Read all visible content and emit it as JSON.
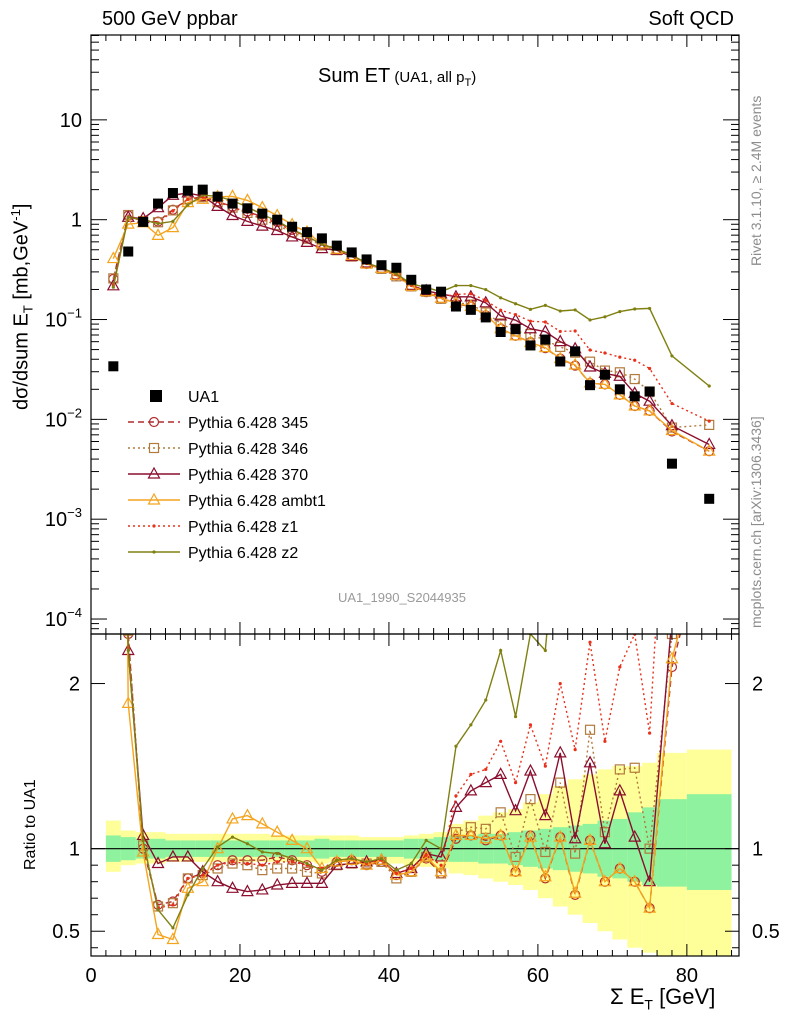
{
  "header": {
    "left": "500 GeV ppbar",
    "right": "Soft QCD"
  },
  "side": {
    "rivet": "Rivet 3.1.10, ≥ 2.4M events",
    "mcplots": "mcplots.cern.ch [arXiv:1306.3436]"
  },
  "chart_data": {
    "type": "line",
    "title": "Sum ET",
    "title_sub": "(UA1, all p",
    "title_sub_idx": "T",
    "title_sub_end": ")",
    "analysis_tag": "UA1_1990_S2044935",
    "ylabel": "dσ/dsum E_T [mb,GeV^-1]",
    "ylabel_main": "dσ/dsum E",
    "ylabel_sub": "T",
    "ylabel_rest": " [mb,GeV",
    "ylabel_sup": "-1",
    "ylabel_end": "]",
    "ratio_ylabel": "Ratio to UA1",
    "xlabel_main": "Σ E",
    "xlabel_sub": "T",
    "xlabel_rest": " [GeV]",
    "xlim": [
      0,
      87
    ],
    "ylim_log": [
      -4.15,
      1.85
    ],
    "ratio_ylim": [
      0.35,
      2.3
    ],
    "x_ticks": [
      0,
      20,
      40,
      60,
      80
    ],
    "y_ticks": [
      {
        "base": "10",
        "exp": "",
        "v": 1
      },
      {
        "base": "1",
        "exp": "",
        "v": 0
      },
      {
        "base": "10",
        "exp": "−1",
        "v": -1
      },
      {
        "base": "10",
        "exp": "−2",
        "v": -2
      },
      {
        "base": "10",
        "exp": "−3",
        "v": -3
      },
      {
        "base": "10",
        "exp": "−4",
        "v": -4
      }
    ],
    "ratio_ticks": [
      {
        "label": "0.5",
        "v": 0.5
      },
      {
        "label": "1",
        "v": 1
      },
      {
        "label": "2",
        "v": 2
      }
    ],
    "legend_placement": "middle-left",
    "data_x": [
      3,
      5,
      7,
      9,
      11,
      13,
      15,
      17,
      19,
      21,
      23,
      25,
      27,
      29,
      31,
      33,
      35,
      37,
      39,
      41,
      43,
      45,
      47,
      49,
      51,
      53,
      55,
      57,
      59,
      61,
      63,
      65,
      67,
      69,
      71,
      73,
      75,
      78,
      83
    ],
    "data_series": {
      "name": "UA1",
      "color": "#000000",
      "y": [
        0.034,
        0.48,
        0.95,
        1.45,
        1.85,
        1.95,
        2.0,
        1.7,
        1.45,
        1.3,
        1.15,
        1.0,
        0.85,
        0.75,
        0.65,
        0.55,
        0.47,
        0.4,
        0.35,
        0.33,
        0.25,
        0.2,
        0.19,
        0.135,
        0.125,
        0.105,
        0.075,
        0.08,
        0.055,
        0.063,
        0.038,
        0.048,
        0.022,
        0.028,
        0.02,
        0.017,
        0.019,
        0.0036,
        0.0016
      ]
    },
    "mc_x": [
      3,
      5,
      7,
      9,
      11,
      13,
      15,
      17,
      19,
      21,
      23,
      25,
      27,
      29,
      31,
      33,
      35,
      37,
      39,
      41,
      43,
      45,
      47,
      49,
      51,
      53,
      55,
      57,
      59,
      61,
      63,
      65,
      67,
      69,
      71,
      73,
      75,
      78,
      83
    ],
    "series": [
      {
        "name": "Pythia 6.428 345",
        "color": "#b22c2c",
        "dash": "6,4",
        "marker": "circle",
        "ratio": [
          7.5,
          2.3,
          1.0,
          0.66,
          0.68,
          0.82,
          0.85,
          0.9,
          0.93,
          0.93,
          0.93,
          0.95,
          0.93,
          0.9,
          0.86,
          0.92,
          0.93,
          0.9,
          0.92,
          0.84,
          0.86,
          0.94,
          0.85,
          1.06,
          1.08,
          1.05,
          1.08,
          0.86,
          1.08,
          0.82,
          1.07,
          0.72,
          1.05,
          0.8,
          0.88,
          0.8,
          0.64,
          2.1,
          3.0
        ]
      },
      {
        "name": "Pythia 6.428 346",
        "color": "#b27a3c",
        "dash": "2,3",
        "marker": "square",
        "ratio": [
          7.6,
          2.32,
          1.02,
          0.65,
          0.67,
          0.82,
          0.84,
          0.88,
          0.91,
          0.9,
          0.87,
          0.88,
          0.88,
          0.86,
          0.85,
          0.9,
          0.91,
          0.91,
          0.92,
          0.82,
          0.86,
          0.95,
          0.85,
          1.1,
          1.13,
          1.12,
          1.22,
          0.95,
          1.3,
          0.98,
          1.4,
          0.97,
          1.72,
          1.1,
          1.48,
          1.49,
          1.0,
          2.3,
          5.5
        ]
      },
      {
        "name": "Pythia 6.428 370",
        "color": "#8b0e2e",
        "dash": "",
        "marker": "triangle",
        "ratio": [
          6.4,
          2.2,
          1.08,
          0.91,
          0.95,
          0.95,
          0.86,
          0.8,
          0.76,
          0.74,
          0.75,
          0.78,
          0.79,
          0.79,
          0.79,
          0.9,
          0.91,
          0.92,
          0.93,
          0.85,
          0.88,
          0.97,
          0.95,
          1.25,
          1.35,
          1.4,
          1.45,
          1.23,
          1.47,
          1.2,
          1.58,
          1.06,
          1.52,
          1.03,
          1.35,
          1.07,
          0.8,
          2.4,
          3.5
        ]
      },
      {
        "name": "Pythia 6.428 ambt1",
        "color": "#f5a41e",
        "dash": "",
        "marker": "triangle",
        "ratio": [
          12.0,
          1.88,
          0.98,
          0.48,
          0.45,
          0.76,
          0.8,
          1.0,
          1.18,
          1.2,
          1.15,
          1.1,
          1.05,
          1.0,
          0.88,
          0.92,
          0.93,
          0.9,
          0.93,
          0.84,
          0.86,
          0.95,
          0.86,
          1.08,
          1.08,
          1.06,
          1.08,
          0.86,
          1.07,
          0.83,
          1.07,
          0.73,
          1.05,
          0.8,
          0.88,
          0.8,
          0.64,
          2.15,
          3.0
        ]
      },
      {
        "name": "Pythia 6.428 z1",
        "color": "#e8301a",
        "dash": "2,3",
        "marker": "dot",
        "ratio": [
          6.5,
          2.22,
          1.05,
          0.64,
          0.66,
          0.82,
          0.84,
          0.9,
          0.92,
          0.91,
          0.9,
          0.92,
          0.92,
          0.9,
          0.88,
          0.93,
          0.94,
          0.91,
          0.93,
          0.85,
          0.88,
          0.96,
          0.9,
          1.32,
          1.45,
          1.48,
          1.65,
          1.4,
          1.75,
          1.5,
          2.0,
          1.6,
          2.25,
          1.65,
          2.1,
          2.3,
          1.7,
          4.0,
          6.0
        ]
      },
      {
        "name": "Pythia 6.428 z2",
        "color": "#808012",
        "dash": "",
        "marker": "dot",
        "ratio": [
          6.2,
          2.2,
          1.05,
          0.63,
          0.52,
          0.72,
          0.88,
          1.01,
          1.07,
          1.03,
          0.98,
          0.97,
          0.94,
          0.91,
          0.87,
          0.93,
          0.94,
          0.92,
          0.94,
          0.87,
          0.91,
          1.05,
          1.0,
          1.62,
          1.75,
          1.9,
          2.2,
          1.8,
          2.3,
          2.2,
          3.2,
          2.6,
          4.5,
          3.8,
          6.0,
          7.5,
          6.8,
          12.0,
          13.5
        ]
      }
    ],
    "band_x_edges": [
      2,
      4,
      6,
      8,
      10,
      12,
      14,
      16,
      18,
      20,
      22,
      24,
      26,
      28,
      30,
      32,
      34,
      36,
      38,
      40,
      42,
      44,
      46,
      48,
      50,
      52,
      54,
      56,
      58,
      60,
      62,
      64,
      66,
      68,
      70,
      72,
      74,
      76,
      80,
      86
    ],
    "band_stat": [
      [
        0.92,
        1.08
      ],
      [
        0.93,
        1.07
      ],
      [
        0.94,
        1.06
      ],
      [
        0.94,
        1.06
      ],
      [
        0.95,
        1.05
      ],
      [
        0.95,
        1.05
      ],
      [
        0.95,
        1.05
      ],
      [
        0.95,
        1.05
      ],
      [
        0.95,
        1.05
      ],
      [
        0.95,
        1.05
      ],
      [
        0.95,
        1.05
      ],
      [
        0.95,
        1.05
      ],
      [
        0.95,
        1.05
      ],
      [
        0.95,
        1.05
      ],
      [
        0.94,
        1.06
      ],
      [
        0.95,
        1.05
      ],
      [
        0.95,
        1.05
      ],
      [
        0.95,
        1.05
      ],
      [
        0.95,
        1.05
      ],
      [
        0.95,
        1.05
      ],
      [
        0.94,
        1.06
      ],
      [
        0.94,
        1.06
      ],
      [
        0.93,
        1.07
      ],
      [
        0.92,
        1.08
      ],
      [
        0.92,
        1.08
      ],
      [
        0.91,
        1.09
      ],
      [
        0.91,
        1.09
      ],
      [
        0.9,
        1.1
      ],
      [
        0.89,
        1.11
      ],
      [
        0.88,
        1.12
      ],
      [
        0.87,
        1.13
      ],
      [
        0.86,
        1.14
      ],
      [
        0.85,
        1.15
      ],
      [
        0.83,
        1.17
      ],
      [
        0.82,
        1.18
      ],
      [
        0.8,
        1.22
      ],
      [
        0.78,
        1.25
      ],
      [
        0.77,
        1.3
      ],
      [
        0.75,
        1.33
      ]
    ],
    "band_total": [
      [
        0.86,
        1.17
      ],
      [
        0.9,
        1.11
      ],
      [
        0.91,
        1.1
      ],
      [
        0.91,
        1.1
      ],
      [
        0.92,
        1.09
      ],
      [
        0.92,
        1.09
      ],
      [
        0.92,
        1.09
      ],
      [
        0.92,
        1.09
      ],
      [
        0.92,
        1.09
      ],
      [
        0.92,
        1.09
      ],
      [
        0.92,
        1.09
      ],
      [
        0.92,
        1.08
      ],
      [
        0.92,
        1.08
      ],
      [
        0.92,
        1.08
      ],
      [
        0.91,
        1.08
      ],
      [
        0.92,
        1.08
      ],
      [
        0.92,
        1.08
      ],
      [
        0.92,
        1.07
      ],
      [
        0.92,
        1.07
      ],
      [
        0.91,
        1.07
      ],
      [
        0.9,
        1.08
      ],
      [
        0.89,
        1.09
      ],
      [
        0.88,
        1.1
      ],
      [
        0.85,
        1.15
      ],
      [
        0.84,
        1.17
      ],
      [
        0.82,
        1.2
      ],
      [
        0.8,
        1.22
      ],
      [
        0.78,
        1.24
      ],
      [
        0.75,
        1.28
      ],
      [
        0.7,
        1.33
      ],
      [
        0.65,
        1.38
      ],
      [
        0.6,
        1.42
      ],
      [
        0.55,
        1.45
      ],
      [
        0.5,
        1.48
      ],
      [
        0.45,
        1.5
      ],
      [
        0.4,
        1.5
      ],
      [
        0.37,
        1.52
      ],
      [
        0.35,
        1.58
      ],
      [
        0.35,
        1.6
      ]
    ]
  }
}
